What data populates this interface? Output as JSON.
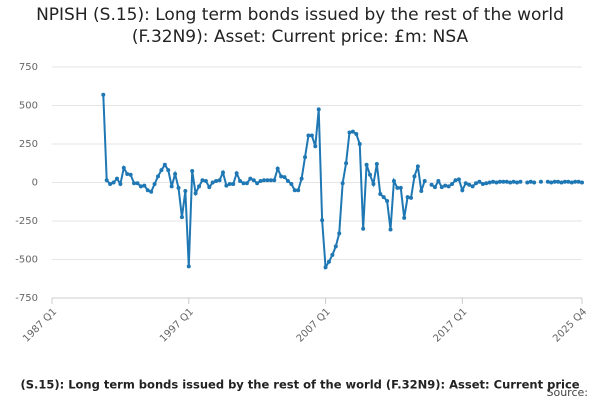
{
  "chart_data": {
    "type": "line",
    "title": "NPISH (S.15): Long term bonds issued by the rest of the world (F.32N9): Asset: Current price: £m: NSA",
    "x_label": "(S.15): Long term bonds issued by the rest of the world (F.32N9): Asset: Current price",
    "source": "Source:",
    "categories": [
      "1987 Q1",
      null,
      null,
      null,
      null,
      null,
      null,
      null,
      null,
      null,
      null,
      null,
      null,
      null,
      null,
      null,
      null,
      null,
      null,
      null,
      null,
      null,
      null,
      null,
      null,
      null,
      null,
      null,
      null,
      null,
      null,
      null,
      null,
      null,
      null,
      null,
      null,
      null,
      null,
      null,
      "1997 Q1",
      null,
      null,
      null,
      null,
      null,
      null,
      null,
      null,
      null,
      null,
      null,
      null,
      null,
      null,
      null,
      null,
      null,
      null,
      null,
      null,
      null,
      null,
      null,
      null,
      null,
      null,
      null,
      null,
      null,
      null,
      null,
      null,
      null,
      null,
      null,
      null,
      null,
      null,
      null,
      "2007 Q1",
      null,
      null,
      null,
      null,
      null,
      null,
      null,
      null,
      null,
      null,
      null,
      null,
      null,
      null,
      null,
      null,
      null,
      null,
      null,
      null,
      null,
      null,
      null,
      null,
      null,
      null,
      null,
      null,
      null,
      null,
      null,
      null,
      null,
      null,
      null,
      null,
      null,
      null,
      null,
      "2017 Q1",
      null,
      null,
      null,
      null,
      null,
      null,
      null,
      null,
      null,
      null,
      null,
      null,
      null,
      null,
      null,
      null,
      null,
      null,
      null,
      null,
      null,
      null,
      null,
      null,
      null,
      null,
      null,
      null,
      null,
      null,
      null,
      null,
      null,
      null,
      "2025 Q4"
    ],
    "values": [
      null,
      null,
      null,
      null,
      null,
      null,
      null,
      null,
      null,
      null,
      null,
      null,
      null,
      null,
      null,
      570,
      15,
      -10,
      0,
      25,
      -10,
      95,
      55,
      50,
      -5,
      -5,
      -25,
      -20,
      -50,
      -60,
      -10,
      40,
      80,
      115,
      80,
      -25,
      55,
      -35,
      -225,
      -55,
      -545,
      75,
      -70,
      -25,
      15,
      10,
      -30,
      0,
      10,
      15,
      65,
      -20,
      -10,
      -10,
      60,
      10,
      -5,
      -5,
      25,
      15,
      -5,
      10,
      15,
      15,
      15,
      15,
      90,
      40,
      35,
      10,
      -10,
      -50,
      -50,
      25,
      165,
      305,
      305,
      235,
      475,
      -245,
      -550,
      -515,
      -470,
      -415,
      -330,
      -5,
      125,
      325,
      330,
      315,
      250,
      -300,
      115,
      50,
      -10,
      120,
      -75,
      -95,
      -120,
      -305,
      10,
      -35,
      -35,
      -230,
      -95,
      -100,
      40,
      105,
      -55,
      10,
      null,
      -15,
      -30,
      10,
      -30,
      -20,
      -25,
      -10,
      15,
      20,
      -50,
      -5,
      -15,
      -25,
      -5,
      5,
      -10,
      -5,
      0,
      5,
      0,
      5,
      5,
      5,
      0,
      5,
      0,
      5,
      null,
      0,
      5,
      0,
      null,
      5,
      null,
      5,
      0,
      5,
      5,
      0,
      5,
      5,
      0,
      5,
      5,
      0
    ],
    "color": "#1f78b4",
    "ylim": [
      -750,
      750
    ],
    "yticks": [
      -750,
      -500,
      -250,
      0,
      250,
      500,
      750
    ],
    "grid": true
  }
}
